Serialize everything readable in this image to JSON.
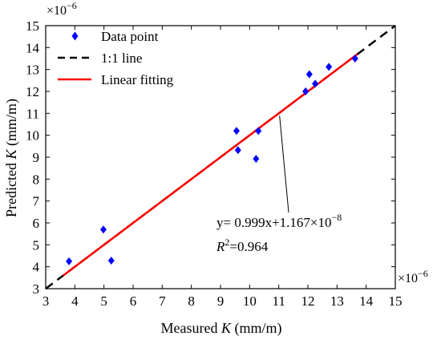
{
  "chart_data": {
    "type": "scatter",
    "x_axis": {
      "label_prefix": "Measured ",
      "label_var": "K",
      "label_suffix": " (mm/m)",
      "multiplier": "×10",
      "multiplier_exp": "−6",
      "range": [
        3,
        15
      ],
      "ticks": [
        "3",
        "4",
        "5",
        "6",
        "7",
        "8",
        "9",
        "10",
        "11",
        "12",
        "13",
        "14",
        "15"
      ]
    },
    "y_axis": {
      "label_prefix": "Predicted ",
      "label_var": "K",
      "label_suffix": " (mm/m)",
      "multiplier": "×10",
      "multiplier_exp": "−6",
      "range": [
        3,
        15
      ],
      "ticks": [
        "3",
        "4",
        "5",
        "6",
        "7",
        "8",
        "9",
        "10",
        "11",
        "12",
        "13",
        "14",
        "15"
      ]
    },
    "series": [
      {
        "name": "Data point",
        "kind": "points",
        "color": "#0000ff",
        "points": [
          {
            "x": 3.8,
            "y": 4.25
          },
          {
            "x": 4.98,
            "y": 5.7
          },
          {
            "x": 5.25,
            "y": 4.28
          },
          {
            "x": 9.55,
            "y": 10.2
          },
          {
            "x": 9.6,
            "y": 9.32
          },
          {
            "x": 10.22,
            "y": 8.92
          },
          {
            "x": 10.3,
            "y": 10.2
          },
          {
            "x": 11.92,
            "y": 12.0
          },
          {
            "x": 12.05,
            "y": 12.78
          },
          {
            "x": 12.25,
            "y": 12.35
          },
          {
            "x": 12.72,
            "y": 13.12
          },
          {
            "x": 13.62,
            "y": 13.5
          }
        ]
      },
      {
        "name": "1:1 line",
        "kind": "dashed-line",
        "color": "#000000",
        "from": {
          "x": 3.0,
          "y": 3.0
        },
        "to": {
          "x": 15.0,
          "y": 15.0
        }
      },
      {
        "name": "Linear fitting",
        "kind": "line",
        "color": "#ff0000",
        "from": {
          "x": 3.6,
          "y": 3.6
        },
        "to": {
          "x": 13.7,
          "y": 13.7
        }
      }
    ],
    "annotation": {
      "equation_main": "y= 0.999x+1.167×10",
      "equation_exp": "−8",
      "r2_var": "R",
      "r2_sup": "2",
      "r2_value": "=0.964",
      "pointer_target": {
        "x": 11.0,
        "y": 11.0
      }
    },
    "legend": {
      "placement": "top-left"
    }
  }
}
